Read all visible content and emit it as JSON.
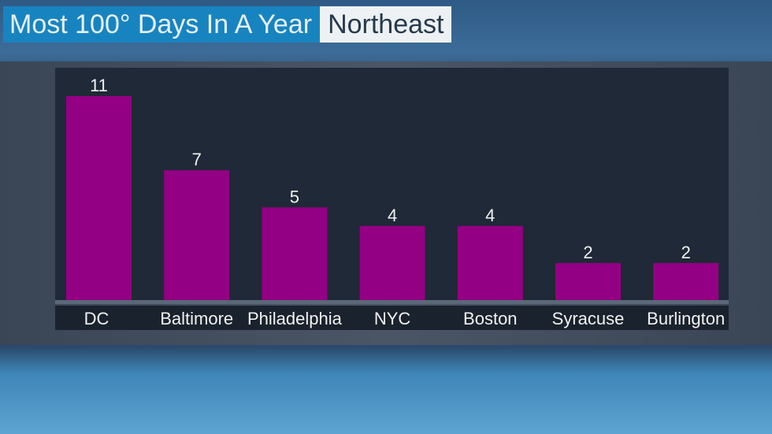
{
  "chart_data": {
    "type": "bar",
    "title": "Most 100° Days In A Year",
    "subtitle": "Northeast",
    "categories": [
      "DC",
      "Baltimore",
      "Philadelphia",
      "NYC",
      "Boston",
      "Syracuse",
      "Burlington"
    ],
    "values": [
      11,
      7,
      5,
      4,
      4,
      2,
      2
    ],
    "ylim": [
      0,
      12.5
    ],
    "grid": false,
    "data_labels": true,
    "colors": {
      "bar": "#930083",
      "title_bg": "#1784c0",
      "subtitle_bg": "#eef1f3"
    }
  }
}
